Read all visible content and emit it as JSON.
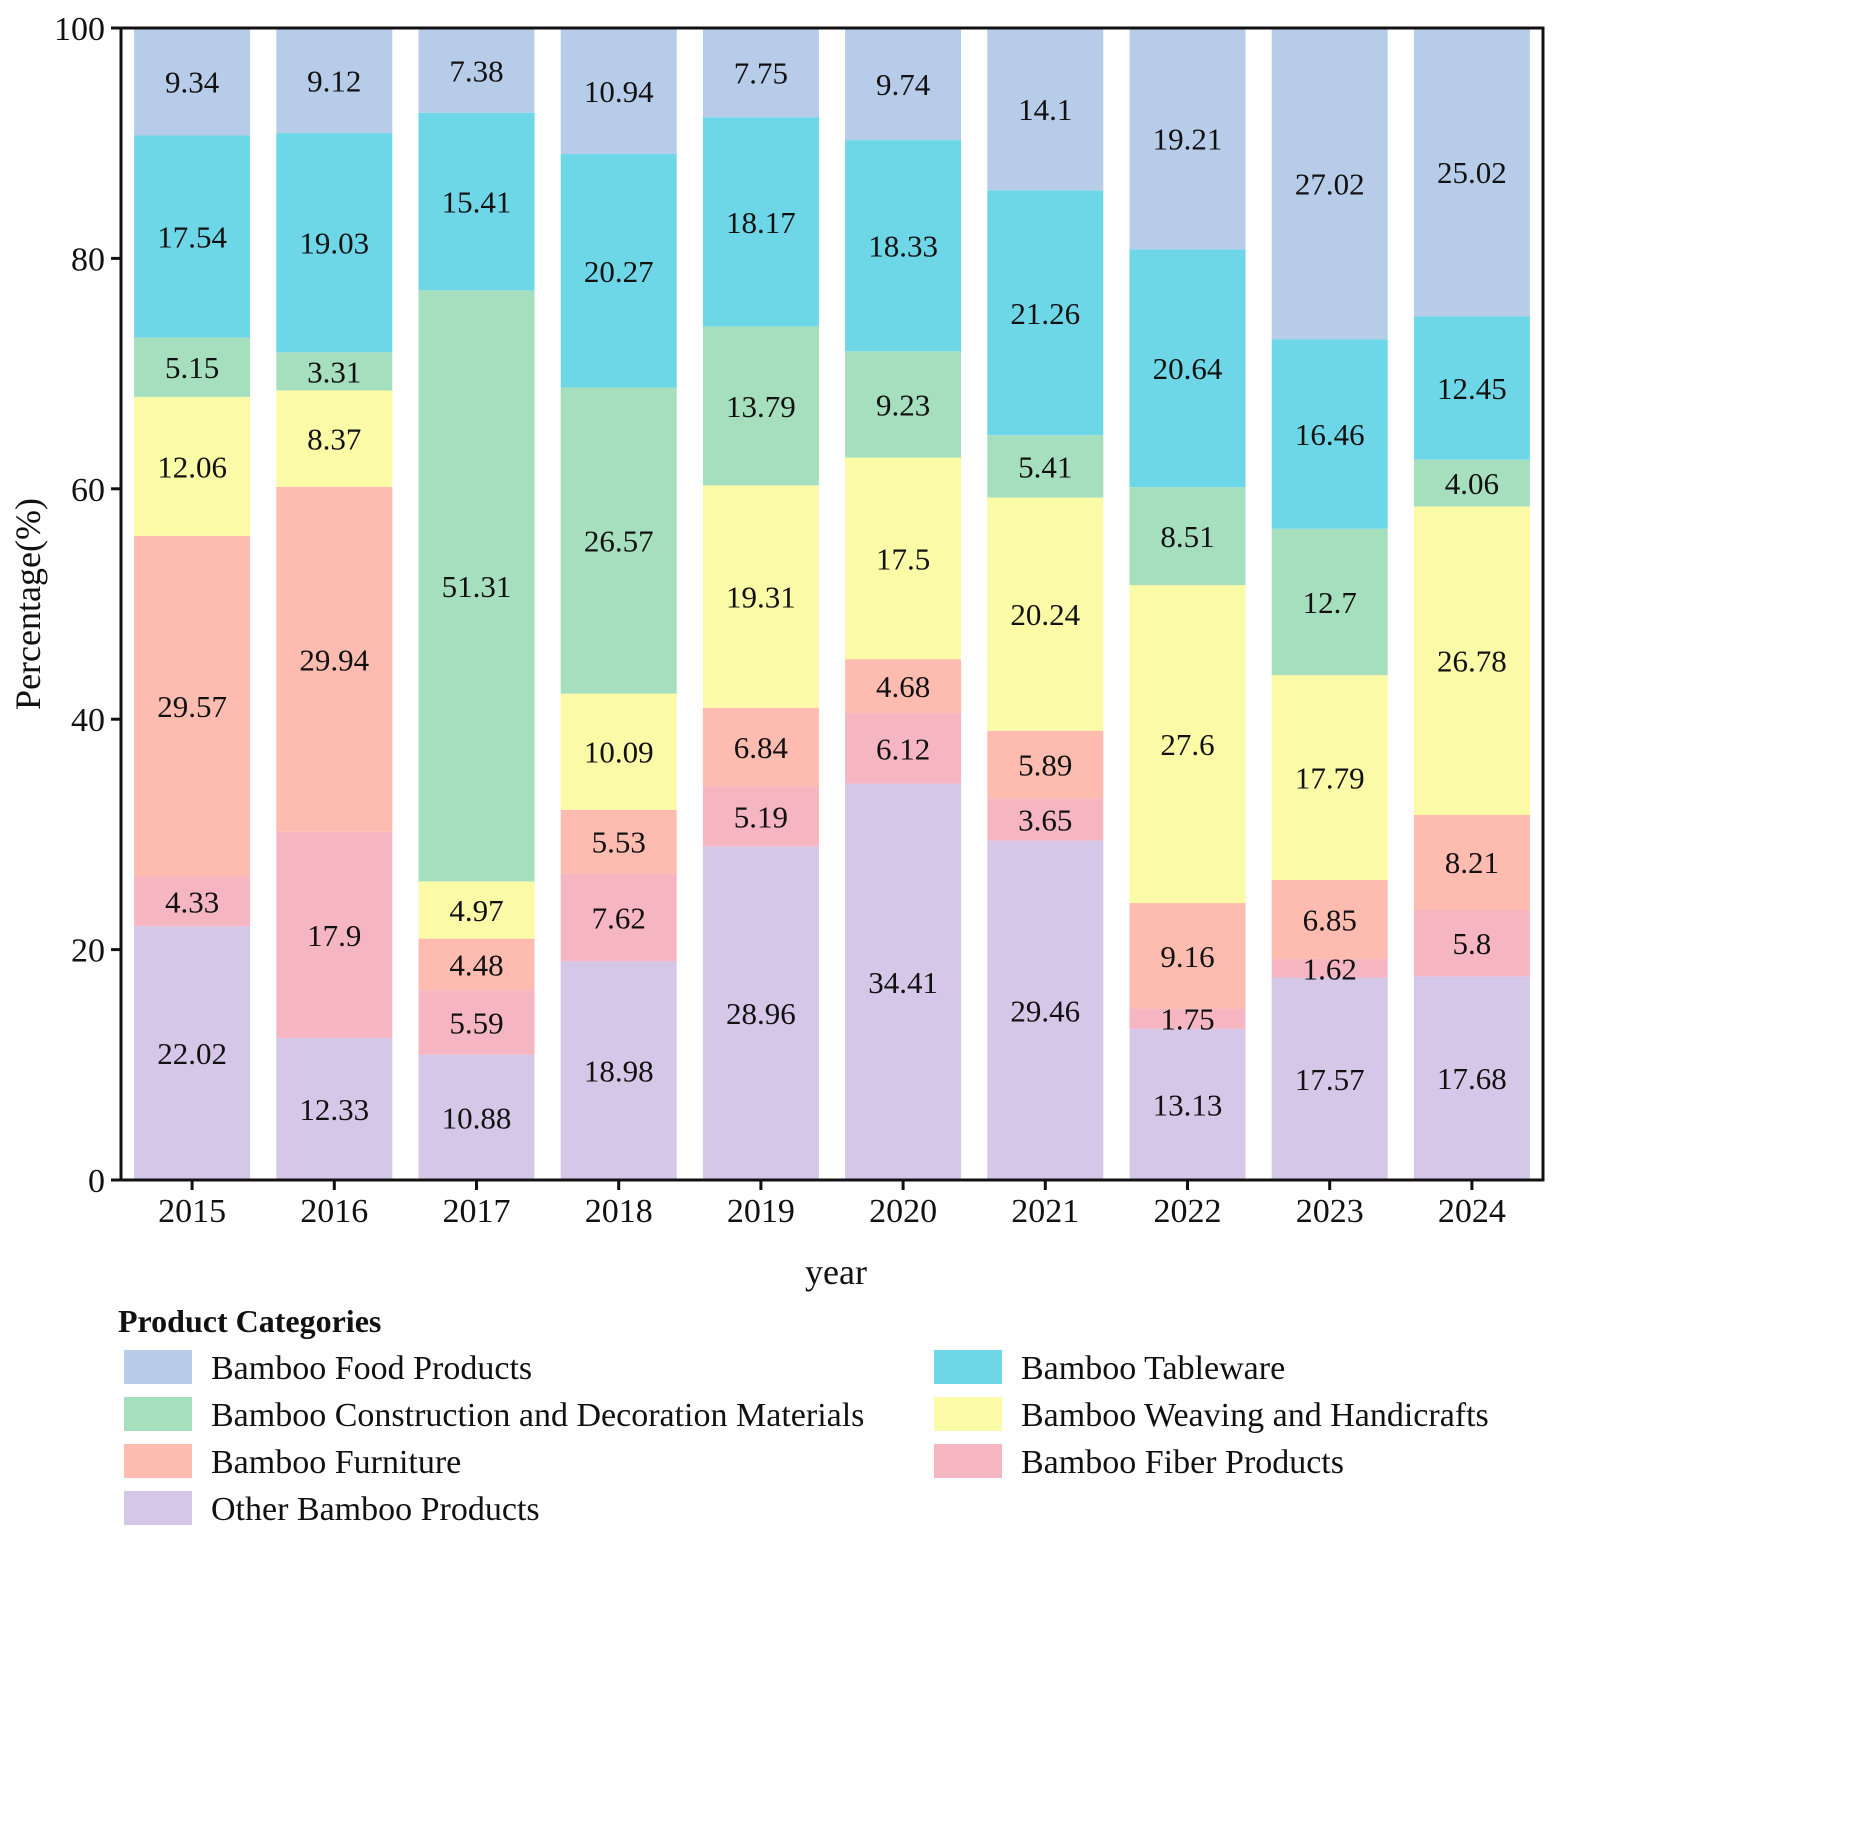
{
  "chart_data": {
    "type": "bar",
    "stacked": true,
    "title": "",
    "xlabel": "year",
    "ylabel": "Percentage(%)",
    "ylim": [
      0,
      100
    ],
    "yticks": [
      0,
      20,
      40,
      60,
      80,
      100
    ],
    "grid": false,
    "categories": [
      "2015",
      "2016",
      "2017",
      "2018",
      "2019",
      "2020",
      "2021",
      "2022",
      "2023",
      "2024"
    ],
    "series": [
      {
        "name": "Other Bamboo Products",
        "color": "#d4c7e8",
        "values": [
          22.02,
          12.33,
          10.88,
          18.98,
          28.96,
          34.41,
          29.46,
          13.13,
          17.57,
          17.68
        ]
      },
      {
        "name": "Bamboo Fiber Products",
        "color": "#f5b5c1",
        "values": [
          4.33,
          17.9,
          5.59,
          7.62,
          5.19,
          6.12,
          3.65,
          1.75,
          1.62,
          5.8
        ]
      },
      {
        "name": "Bamboo Furniture",
        "color": "#fdbcaf",
        "values": [
          29.57,
          29.94,
          4.48,
          5.53,
          6.84,
          4.68,
          5.89,
          9.16,
          6.85,
          8.21
        ]
      },
      {
        "name": "Bamboo Weaving and Handicrafts",
        "color": "#fbfaa6",
        "values": [
          12.06,
          8.37,
          4.97,
          10.09,
          19.31,
          17.5,
          20.24,
          27.6,
          17.79,
          26.78
        ]
      },
      {
        "name": "Bamboo Construction and Decoration Materials",
        "color": "#a6dfbd",
        "values": [
          5.15,
          3.31,
          51.31,
          26.57,
          13.79,
          9.23,
          5.41,
          8.51,
          12.7,
          4.06
        ]
      },
      {
        "name": "Bamboo Tableware",
        "color": "#6dd7e7",
        "values": [
          17.54,
          19.03,
          15.41,
          20.27,
          18.17,
          18.33,
          21.26,
          20.64,
          16.46,
          12.45
        ]
      },
      {
        "name": "Bamboo Food Products",
        "color": "#b7cce9",
        "values": [
          9.34,
          9.12,
          7.38,
          10.94,
          7.75,
          9.74,
          14.1,
          19.21,
          27.02,
          25.02
        ]
      }
    ],
    "legend": {
      "title": "Product Categories",
      "placement": "bottom",
      "entries": [
        "Bamboo Food Products",
        "Bamboo Tableware",
        "Bamboo Construction and Decoration Materials",
        "Bamboo Weaving and Handicrafts",
        "Bamboo Furniture",
        "Bamboo Fiber Products",
        "Other Bamboo Products"
      ]
    }
  }
}
